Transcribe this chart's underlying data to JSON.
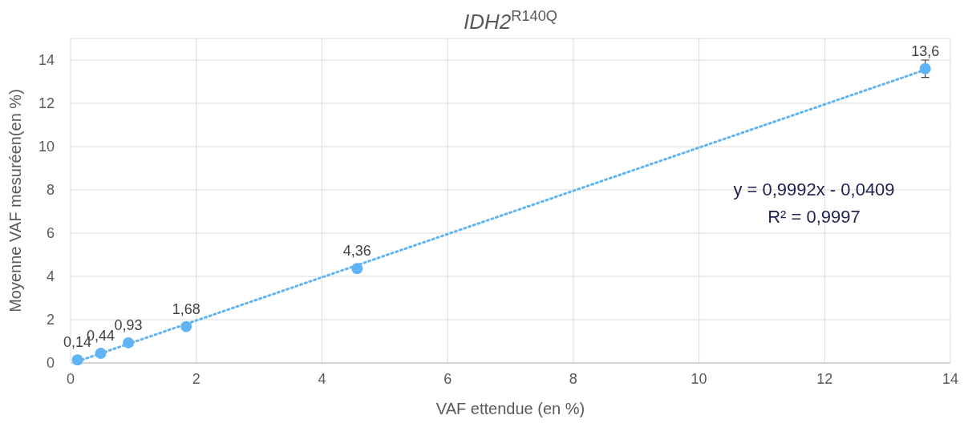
{
  "chart_data": {
    "type": "scatter",
    "title": "IDH2$^{R140Q}$",
    "xlabel": "VAF ettendue (en %)",
    "ylabel": "Moyenne VAF mesuréen(en %)",
    "xlim": [
      0,
      14
    ],
    "ylim": [
      0,
      15
    ],
    "xticks": [
      0,
      2,
      4,
      6,
      8,
      10,
      12,
      14
    ],
    "yticks": [
      0,
      2,
      4,
      6,
      8,
      10,
      12,
      14
    ],
    "grid": true,
    "marker": "circle",
    "series": [
      {
        "type": "line",
        "color": "#5fb4f5",
        "line_style": "dotted",
        "marker": "none",
        "x": [
          0.11,
          13.65
        ],
        "values": [
          0.07,
          13.6
        ]
      },
      {
        "color": "#5fb4f5",
        "x": [
          0.11,
          0.48,
          0.92,
          1.84,
          4.56,
          13.6
        ],
        "values": [
          0.14,
          0.44,
          0.93,
          1.68,
          4.36,
          13.6
        ],
        "value_labels": [
          "0,14",
          "0,44",
          "0,93",
          "1,68",
          "4,36",
          "13,6"
        ],
        "errors": [
          null,
          null,
          null,
          null,
          null,
          0.4
        ]
      }
    ],
    "annotations": [
      "y = 0,9992x - 0,0409",
      "R² = 0,9997"
    ]
  }
}
